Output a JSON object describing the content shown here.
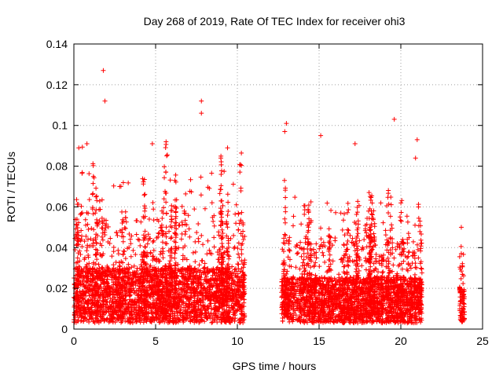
{
  "chart_data": {
    "type": "scatter",
    "title": "Day 268 of 2019, Rate Of TEC Index for receiver ohi3",
    "xlabel": "GPS time / hours",
    "ylabel": "ROTI / TECUs",
    "xlim": [
      0,
      25
    ],
    "ylim": [
      0,
      0.14
    ],
    "xticks": [
      "0",
      "5",
      "10",
      "15",
      "20",
      "25"
    ],
    "yticks": [
      "0",
      "0.02",
      "0.04",
      "0.06",
      "0.08",
      "0.1",
      "0.12",
      "0.14"
    ],
    "grid": true,
    "marker": "+",
    "series": [
      {
        "name": "ROTI",
        "color": "#ff0000",
        "segments": [
          {
            "x_start": 0.0,
            "x_end": 10.45,
            "typical_max": 0.03
          },
          {
            "x_start": 12.7,
            "x_end": 21.3,
            "typical_max": 0.025
          },
          {
            "x_start": 23.6,
            "x_end": 23.9,
            "typical_max": 0.02
          }
        ],
        "notable_points": [
          {
            "x": 1.8,
            "y": 0.127
          },
          {
            "x": 1.9,
            "y": 0.112
          },
          {
            "x": 7.8,
            "y": 0.112
          },
          {
            "x": 7.8,
            "y": 0.106
          },
          {
            "x": 13.0,
            "y": 0.101
          },
          {
            "x": 12.9,
            "y": 0.097
          },
          {
            "x": 15.1,
            "y": 0.095
          },
          {
            "x": 19.6,
            "y": 0.103
          },
          {
            "x": 4.8,
            "y": 0.091
          },
          {
            "x": 0.8,
            "y": 0.091
          },
          {
            "x": 9.4,
            "y": 0.089
          },
          {
            "x": 17.2,
            "y": 0.091
          },
          {
            "x": 21.0,
            "y": 0.093
          },
          {
            "x": 20.9,
            "y": 0.084
          },
          {
            "x": 0.3,
            "y": 0.089
          },
          {
            "x": 23.7,
            "y": 0.05
          },
          {
            "x": 10.3,
            "y": 0.042
          }
        ]
      }
    ]
  }
}
